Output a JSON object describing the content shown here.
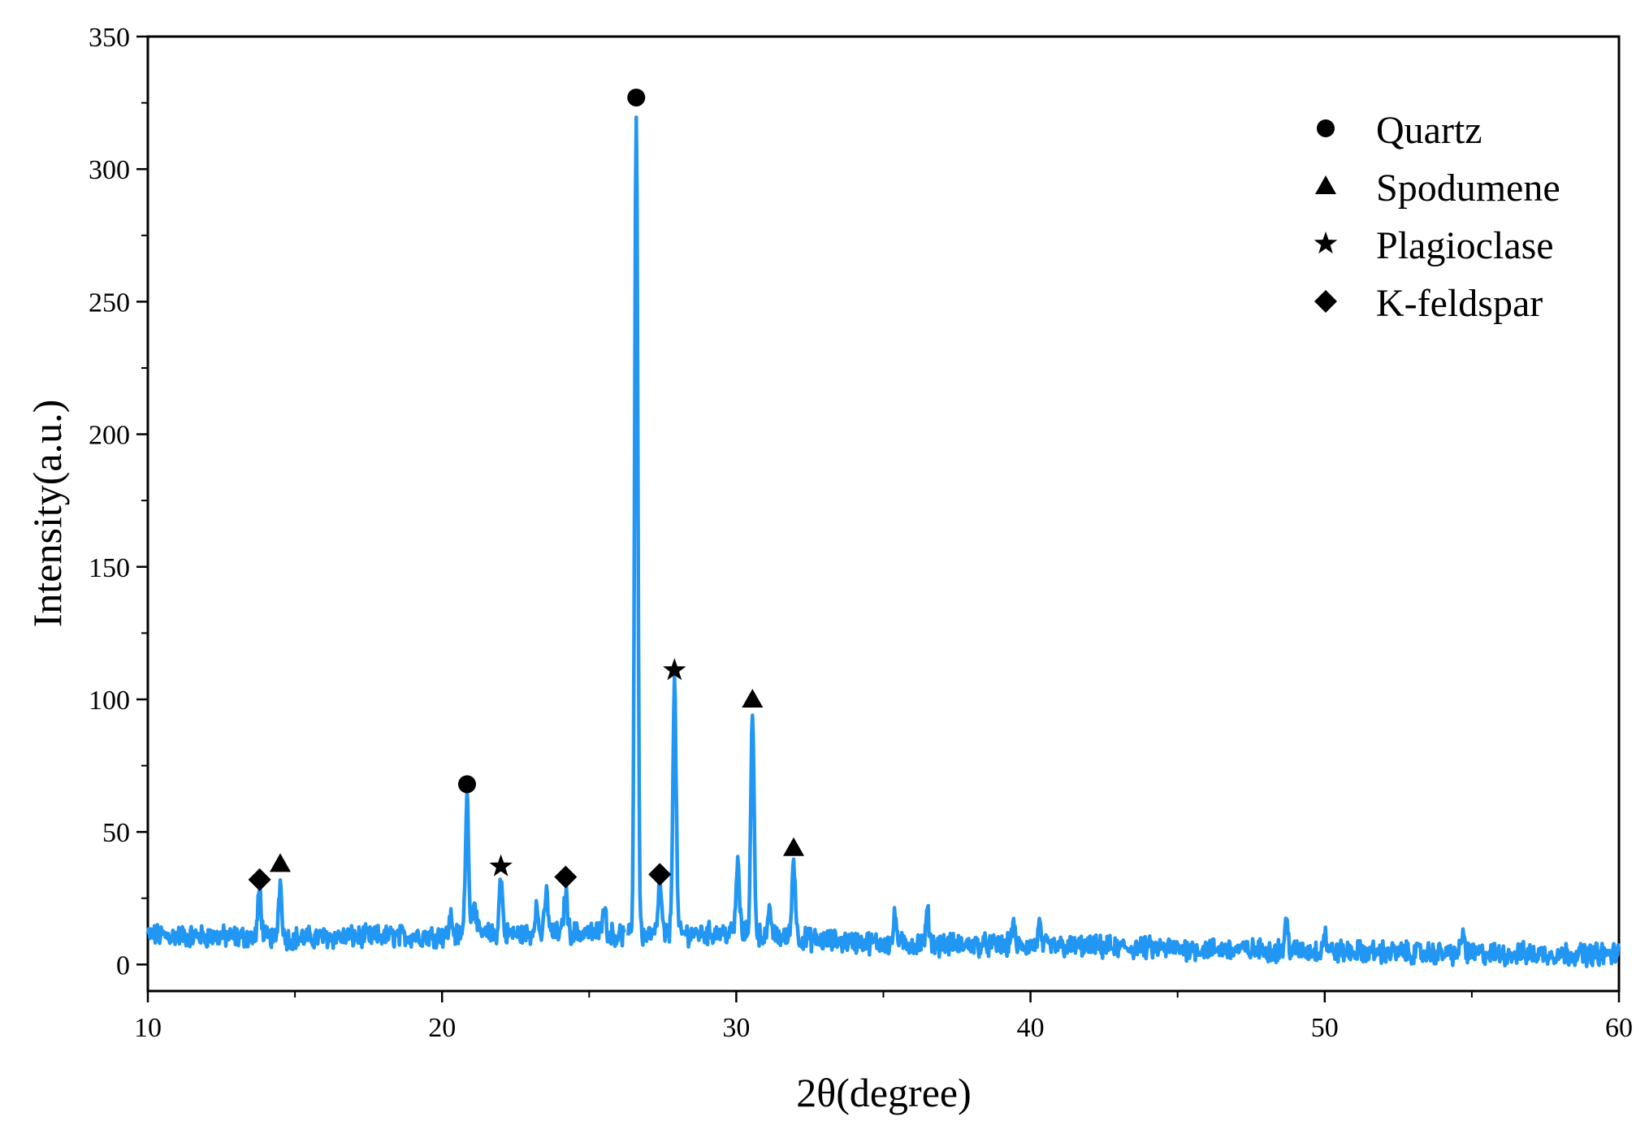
{
  "chart_data": {
    "type": "line",
    "title": "",
    "xlabel": "2θ(degree)",
    "ylabel": "Intensity(a.u.)",
    "xlim": [
      10,
      60
    ],
    "ylim": [
      -10,
      350
    ],
    "x_ticks": [
      10,
      20,
      30,
      40,
      50,
      60
    ],
    "y_ticks": [
      0,
      50,
      100,
      150,
      200,
      250,
      300,
      350
    ],
    "grid": false,
    "legend_position": "top-right",
    "line_color": "#2196F3",
    "legend": [
      {
        "label": "Quartz",
        "marker": "circle"
      },
      {
        "label": "Spodumene",
        "marker": "triangle"
      },
      {
        "label": "Plagioclase",
        "marker": "star"
      },
      {
        "label": "K-feldspar",
        "marker": "diamond"
      }
    ],
    "peaks": [
      {
        "x": 13.8,
        "y": 28,
        "phase": "K-feldspar",
        "marker": "diamond",
        "marker_y": 32
      },
      {
        "x": 14.5,
        "y": 31,
        "phase": "Spodumene",
        "marker": "triangle",
        "marker_y": 38
      },
      {
        "x": 20.85,
        "y": 64,
        "phase": "Quartz",
        "marker": "circle",
        "marker_y": 68
      },
      {
        "x": 22.0,
        "y": 32,
        "phase": "Plagioclase",
        "marker": "star",
        "marker_y": 37
      },
      {
        "x": 24.2,
        "y": 28,
        "phase": "K-feldspar",
        "marker": "diamond",
        "marker_y": 33
      },
      {
        "x": 26.6,
        "y": 322,
        "phase": "Quartz",
        "marker": "circle",
        "marker_y": 327
      },
      {
        "x": 27.4,
        "y": 31,
        "phase": "K-feldspar",
        "marker": "diamond",
        "marker_y": 34
      },
      {
        "x": 27.9,
        "y": 106,
        "phase": "Plagioclase",
        "marker": "star",
        "marker_y": 111
      },
      {
        "x": 30.55,
        "y": 93,
        "phase": "Spodumene",
        "marker": "triangle",
        "marker_y": 100
      },
      {
        "x": 31.95,
        "y": 40,
        "phase": "Spodumene",
        "marker": "triangle",
        "marker_y": 44
      }
    ],
    "minor_peaks": [
      {
        "x": 20.3,
        "y": 18
      },
      {
        "x": 21.1,
        "y": 25
      },
      {
        "x": 23.2,
        "y": 22
      },
      {
        "x": 23.55,
        "y": 27
      },
      {
        "x": 25.5,
        "y": 24
      },
      {
        "x": 30.05,
        "y": 38
      },
      {
        "x": 31.15,
        "y": 19
      },
      {
        "x": 35.4,
        "y": 18
      },
      {
        "x": 36.5,
        "y": 19
      },
      {
        "x": 39.4,
        "y": 15
      },
      {
        "x": 40.3,
        "y": 14
      },
      {
        "x": 48.7,
        "y": 16
      },
      {
        "x": 50.0,
        "y": 12
      },
      {
        "x": 54.7,
        "y": 12
      }
    ],
    "baseline": [
      [
        10,
        11
      ],
      [
        15,
        10
      ],
      [
        20,
        11
      ],
      [
        25,
        12
      ],
      [
        26.2,
        11
      ],
      [
        30,
        12
      ],
      [
        33,
        9
      ],
      [
        35,
        8
      ],
      [
        40,
        7
      ],
      [
        45,
        6
      ],
      [
        50,
        5
      ],
      [
        55,
        4
      ],
      [
        60,
        4
      ]
    ],
    "x_range_of_trace": [
      10,
      60
    ]
  }
}
